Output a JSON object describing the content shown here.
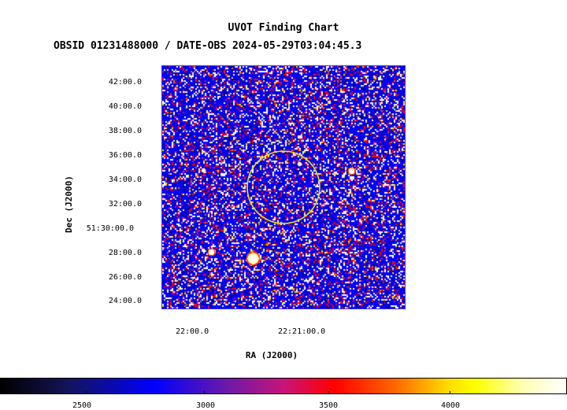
{
  "chart": {
    "title": "UVOT Finding Chart",
    "subtitle": "OBSID 01231488000 / DATE-OBS 2024-05-29T03:04:45.3",
    "xlabel": "RA (J2000)",
    "ylabel": "Dec (J2000)",
    "y_ticks": [
      "42:00.0",
      "40:00.0",
      "38:00.0",
      "36:00.0",
      "34:00.0",
      "32:00.0",
      "51:30:00.0",
      "28:00.0",
      "26:00.0",
      "24:00.0"
    ],
    "x_ticks": [
      "22:00.0",
      "22:21:00.0"
    ],
    "colorbar_ticks": [
      "2500",
      "3000",
      "3500",
      "4000"
    ]
  },
  "colors": {
    "background_noise": "#0000ff",
    "source_region": "#e6e600",
    "frame": "#3333ff"
  }
}
